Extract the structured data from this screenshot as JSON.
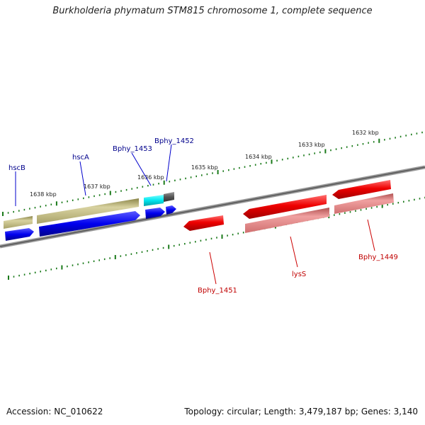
{
  "title": "Burkholderia phymatum STM815 chromosome 1, complete sequence",
  "accession": "Accession: NC_010622",
  "topology": "Topology: circular; Length: 3,479,187 bp; Genes: 3,140",
  "kbp_labels": [
    "1638 kbp",
    "1637 kbp",
    "1636 kbp",
    "1635 kbp",
    "1634 kbp",
    "1633 kbp",
    "1632 kbp"
  ],
  "genes": {
    "hscB": "hscB",
    "hscA": "hscA",
    "bphy_1453": "Bphy_1453",
    "bphy_1452": "Bphy_1452",
    "bphy_1451": "Bphy_1451",
    "lysS": "lysS",
    "bphy_1449": "Bphy_1449"
  },
  "colors": {
    "blue_gene": "#0000ee",
    "olive_gene": "#bdb76b",
    "cyan_gene": "#00e5ee",
    "gray_gene": "#555555",
    "red_gene": "#ee0000",
    "pink_gene": "#ee8080",
    "tick": "#1a7a1a",
    "backbone": "#777777"
  }
}
